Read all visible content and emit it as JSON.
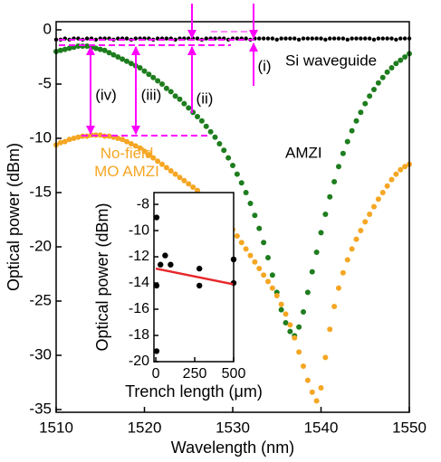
{
  "chart_data": [
    {
      "type": "scatter",
      "xlabel": "Wavelength (nm)",
      "ylabel": "Optical power (dBm)",
      "xlim": [
        1510,
        1550
      ],
      "ylim": [
        -35.25,
        0.75
      ],
      "xticks": [
        1510,
        1520,
        1530,
        1540,
        1550
      ],
      "yticks": [
        0,
        -5,
        -10,
        -15,
        -20,
        -25,
        -30,
        -35
      ],
      "x": [
        1510,
        1510.5,
        1511,
        1511.5,
        1512,
        1512.5,
        1513,
        1513.5,
        1514,
        1514.5,
        1515,
        1515.5,
        1516,
        1516.5,
        1517,
        1517.5,
        1518,
        1518.5,
        1519,
        1519.5,
        1520,
        1520.5,
        1521,
        1521.5,
        1522,
        1522.5,
        1523,
        1523.5,
        1524,
        1524.5,
        1525,
        1525.5,
        1526,
        1526.5,
        1527,
        1527.5,
        1528,
        1528.5,
        1529,
        1529.5,
        1530,
        1530.5,
        1531,
        1531.5,
        1532,
        1532.5,
        1533,
        1533.5,
        1534,
        1534.5,
        1535,
        1535.5,
        1536,
        1536.5,
        1537,
        1537.5,
        1538,
        1538.5,
        1539,
        1539.5,
        1540,
        1540.5,
        1541,
        1541.5,
        1542,
        1542.5,
        1543,
        1543.5,
        1544,
        1544.5,
        1545,
        1545.5,
        1546,
        1546.5,
        1547,
        1547.5,
        1548,
        1548.5,
        1549,
        1549.5,
        1550
      ],
      "series": [
        {
          "name": "Si waveguide",
          "color": "#000000",
          "values": [
            -0.9,
            -0.9,
            -0.8,
            -0.9,
            -0.8,
            -0.8,
            -0.9,
            -0.8,
            -0.8,
            -0.9,
            -0.8,
            -0.8,
            -0.8,
            -0.9,
            -0.8,
            -0.8,
            -0.8,
            -0.9,
            -0.8,
            -0.8,
            -0.8,
            -0.8,
            -0.9,
            -0.8,
            -0.8,
            -0.8,
            -0.8,
            -0.9,
            -0.8,
            -0.8,
            -0.8,
            -0.8,
            -0.8,
            -0.9,
            -0.8,
            -0.8,
            -0.8,
            -0.8,
            -0.8,
            -0.9,
            -0.8,
            -0.8,
            -0.8,
            -0.8,
            -0.9,
            -0.8,
            -0.8,
            -0.8,
            -0.8,
            -0.8,
            -0.9,
            -0.8,
            -0.8,
            -0.8,
            -0.8,
            -0.9,
            -0.8,
            -0.8,
            -0.8,
            -0.8,
            -0.8,
            -0.9,
            -0.8,
            -0.8,
            -0.8,
            -0.8,
            -0.9,
            -0.8,
            -0.8,
            -0.8,
            -0.8,
            -0.8,
            -0.9,
            -0.8,
            -0.8,
            -0.8,
            -0.8,
            -0.9,
            -0.8,
            -0.8,
            -0.8
          ]
        },
        {
          "name": "AMZI",
          "color": "#1e7d1e",
          "values": [
            -2.0,
            -1.9,
            -1.8,
            -1.7,
            -1.6,
            -1.5,
            -1.5,
            -1.5,
            -1.6,
            -1.7,
            -1.8,
            -1.9,
            -2.1,
            -2.3,
            -2.5,
            -2.7,
            -2.9,
            -3.1,
            -3.3,
            -3.5,
            -3.8,
            -4.1,
            -4.4,
            -4.7,
            -5.0,
            -5.4,
            -5.7,
            -6.1,
            -6.4,
            -6.8,
            -7.2,
            -7.6,
            -8.0,
            -8.4,
            -8.9,
            -9.4,
            -9.9,
            -10.5,
            -11.1,
            -11.8,
            -12.5,
            -13.3,
            -14.1,
            -15.0,
            -16.0,
            -17.1,
            -18.3,
            -19.6,
            -21.0,
            -22.6,
            -24.2,
            -25.8,
            -27.0,
            -27.8,
            -28.2,
            -27.4,
            -26.0,
            -24.2,
            -22.3,
            -20.5,
            -18.7,
            -17.0,
            -15.4,
            -14.0,
            -12.6,
            -11.4,
            -10.3,
            -9.3,
            -8.4,
            -7.6,
            -6.8,
            -6.1,
            -5.5,
            -4.9,
            -4.4,
            -3.9,
            -3.5,
            -3.1,
            -2.8,
            -2.5,
            -2.2
          ]
        },
        {
          "name": "No-field MO AMZI",
          "color": "#f5a623",
          "values": [
            -10.6,
            -10.4,
            -10.3,
            -10.1,
            -10.0,
            -9.9,
            -9.8,
            -9.8,
            -9.7,
            -9.7,
            -9.7,
            -9.8,
            -9.8,
            -9.9,
            -10.0,
            -10.1,
            -10.3,
            -10.5,
            -10.7,
            -10.9,
            -11.2,
            -11.5,
            -11.8,
            -12.1,
            -12.4,
            -12.7,
            -13.0,
            -13.3,
            -13.6,
            -13.9,
            -14.2,
            -14.5,
            -14.8,
            -15.2,
            -15.6,
            -16.0,
            -16.4,
            -16.9,
            -17.4,
            -17.9,
            -18.4,
            -19.0,
            -19.6,
            -20.2,
            -20.8,
            -21.4,
            -22.0,
            -22.6,
            -23.2,
            -23.8,
            -24.5,
            -25.3,
            -26.2,
            -27.2,
            -28.4,
            -29.7,
            -31.0,
            -32.3,
            -33.4,
            -34.2,
            -33.0,
            -30.2,
            -27.6,
            -25.5,
            -23.8,
            -22.4,
            -21.2,
            -20.2,
            -19.3,
            -18.5,
            -17.7,
            -17.0,
            -16.3,
            -15.6,
            -15.0,
            -14.4,
            -13.8,
            -13.3,
            -12.9,
            -12.6,
            -12.4
          ]
        }
      ],
      "annotations": [
        "(i)",
        "(ii)",
        "(iii)",
        "(iv)"
      ]
    },
    {
      "type": "scatter",
      "xlabel": "Trench length (μm)",
      "ylabel": "Optical power (dBm)",
      "xlim": [
        -12,
        500
      ],
      "ylim": [
        -20,
        -7.1
      ],
      "xticks": [
        0,
        250,
        500
      ],
      "yticks": [
        -8,
        -10,
        -12,
        -14,
        -16,
        -18,
        -20
      ],
      "x": [
        5,
        5,
        5,
        30,
        60,
        95,
        280,
        280,
        500,
        500
      ],
      "values": [
        -9.0,
        -14.2,
        -19.2,
        -12.6,
        -11.9,
        -12.6,
        -12.9,
        -14.2,
        -12.2,
        -14.0
      ],
      "color": "#000000",
      "fit": {
        "x": [
          0,
          500
        ],
        "values": [
          -12.9,
          -14.1
        ],
        "color": "#e8262a"
      }
    }
  ]
}
